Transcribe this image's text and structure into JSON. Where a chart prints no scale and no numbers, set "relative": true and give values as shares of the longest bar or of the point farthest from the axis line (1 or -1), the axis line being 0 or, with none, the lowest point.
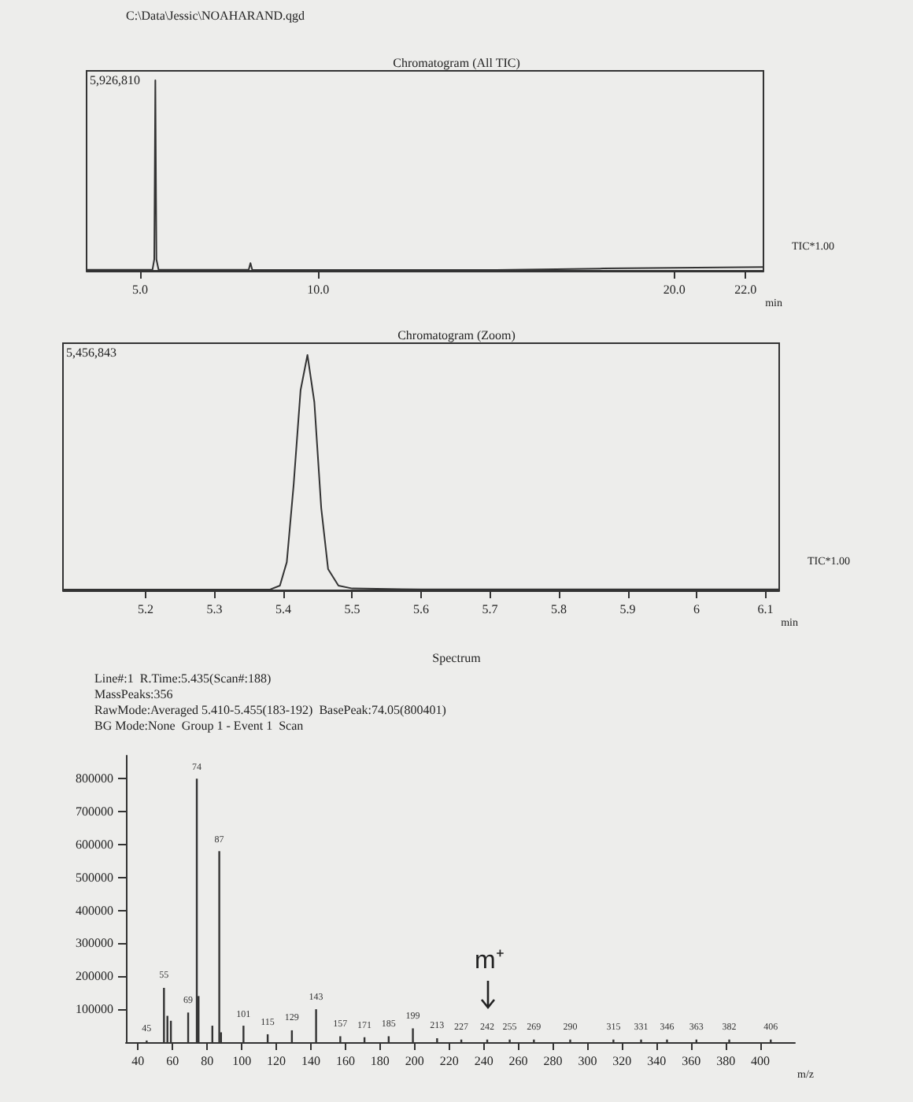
{
  "chart_data": [
    {
      "type": "line",
      "title": "Chromatogram (All TIC)",
      "xlabel": "min",
      "relative": true,
      "tick_labels": "x",
      "color": "#333333",
      "marker": "none",
      "annotations": [
        "C:\\Data\\Jessic\\NOAHARAND.qgd",
        "5,926,810",
        "TIC*1.00"
      ],
      "x": [
        3.5,
        5.0,
        5.35,
        5.4,
        5.43,
        5.46,
        5.52,
        7.0,
        8.05,
        8.1,
        8.15,
        10.0,
        15.0,
        18.0,
        20.0,
        22.5
      ],
      "values": [
        0.005,
        0.005,
        0.006,
        0.06,
        1,
        0.06,
        0.006,
        0.005,
        0.005,
        0.04,
        0.005,
        0.004,
        0.004,
        0.012,
        0.016,
        0.02
      ],
      "xlim": [
        3.5,
        22.5
      ],
      "xticks": [
        {
          "value": 5,
          "label": "5.0"
        },
        {
          "value": 10,
          "label": "10.0"
        },
        {
          "value": 20,
          "label": "20.0"
        },
        {
          "value": 22,
          "label": "22.0"
        }
      ]
    },
    {
      "type": "line",
      "title": "Chromatogram (Zoom)",
      "xlabel": "min",
      "relative": true,
      "tick_labels": "x",
      "color": "#333333",
      "marker": "none",
      "annotations": [
        "5,456,843",
        "TIC*1.00"
      ],
      "x": [
        5.08,
        5.38,
        5.395,
        5.405,
        5.415,
        5.425,
        5.435,
        5.445,
        5.455,
        5.465,
        5.48,
        5.5,
        5.6,
        6.12
      ],
      "values": [
        0.003,
        0.003,
        0.02,
        0.12,
        0.45,
        0.85,
        1,
        0.8,
        0.35,
        0.09,
        0.02,
        0.008,
        0.004,
        0.004
      ],
      "xlim": [
        5.08,
        6.12
      ],
      "xticks": [
        5.2,
        5.3,
        5.4,
        5.5,
        5.6,
        5.7,
        5.8,
        5.9,
        6.0,
        6.1
      ]
    },
    {
      "type": "bar",
      "title": "Spectrum",
      "xlabel": "m/z",
      "color": "#333333",
      "annotations": [
        "Line#:1  R.Time:5.435(Scan#:188)",
        "MassPeaks:356",
        "RawMode:Averaged 5.410-5.455(183-192)  BasePeak:74.05(800401)",
        "BG Mode:None  Group 1 - Event 1  Scan",
        {
          "text": "m⁺",
          "x": 242,
          "y": 8000
        },
        {
          "text": "45",
          "x": 45,
          "y": 5000
        },
        {
          "text": "55",
          "x": 55,
          "y": 165000
        },
        {
          "text": "69",
          "x": 69,
          "y": 90000
        },
        {
          "text": "74",
          "x": 74,
          "y": 800000
        },
        {
          "text": "87",
          "x": 87,
          "y": 580000
        },
        {
          "text": "101",
          "x": 101,
          "y": 50000
        },
        {
          "text": "115",
          "x": 115,
          "y": 24000
        },
        {
          "text": "129",
          "x": 129,
          "y": 36000
        },
        {
          "text": "143",
          "x": 143,
          "y": 100000
        },
        {
          "text": "157",
          "x": 157,
          "y": 18000
        },
        {
          "text": "171",
          "x": 171,
          "y": 15000
        },
        {
          "text": "185",
          "x": 185,
          "y": 18000
        },
        {
          "text": "199",
          "x": 199,
          "y": 42000
        },
        {
          "text": "213",
          "x": 213,
          "y": 12000
        },
        {
          "text": "227",
          "x": 227,
          "y": 8000
        },
        {
          "text": "242",
          "x": 242,
          "y": 8000
        },
        {
          "text": "255",
          "x": 255,
          "y": 8000
        },
        {
          "text": "269",
          "x": 269,
          "y": 8000
        },
        {
          "text": "290",
          "x": 290,
          "y": 8000
        },
        {
          "text": "315",
          "x": 315,
          "y": 8000
        },
        {
          "text": "331",
          "x": 331,
          "y": 8000
        },
        {
          "text": "346",
          "x": 346,
          "y": 8000
        },
        {
          "text": "363",
          "x": 363,
          "y": 8000
        },
        {
          "text": "382",
          "x": 382,
          "y": 8000
        },
        {
          "text": "406",
          "x": 406,
          "y": 8000
        }
      ],
      "x": [
        45,
        55,
        57,
        59,
        69,
        74,
        75,
        83,
        87,
        88,
        101,
        115,
        129,
        143,
        157,
        171,
        185,
        199,
        213,
        227,
        242,
        255,
        269,
        290,
        315,
        331,
        346,
        363,
        382,
        406
      ],
      "values": [
        5000,
        165000,
        80000,
        65000,
        90000,
        800000,
        140000,
        50000,
        580000,
        30000,
        50000,
        24000,
        36000,
        100000,
        18000,
        15000,
        18000,
        42000,
        12000,
        8000,
        8000,
        8000,
        8000,
        8000,
        8000,
        8000,
        8000,
        8000,
        8000,
        8000
      ],
      "xlim": [
        33,
        420
      ],
      "xticks": [
        40,
        60,
        80,
        100,
        120,
        140,
        160,
        180,
        200,
        220,
        240,
        260,
        280,
        300,
        320,
        340,
        360,
        380,
        400
      ],
      "ylim": [
        0,
        870000
      ],
      "yticks": [
        100000,
        200000,
        300000,
        400000,
        500000,
        600000,
        700000,
        800000
      ]
    }
  ]
}
